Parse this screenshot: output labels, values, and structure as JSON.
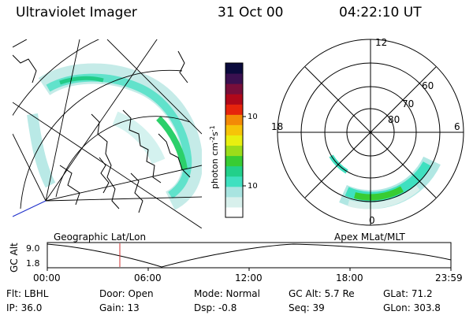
{
  "header": {
    "title": "Ultraviolet Imager",
    "date": "31 Oct 00",
    "time": "04:22:10 UT"
  },
  "colorbar": {
    "label": "photon cm",
    "label_sup1": "-2",
    "label_mid": "s",
    "label_sup2": "-1",
    "ticks": [
      "100",
      "10"
    ],
    "tick_values": [
      100,
      10
    ],
    "colors": [
      "#ffffff",
      "#d8f0ec",
      "#a8e4e0",
      "#3fe0c0",
      "#22d08a",
      "#38cc33",
      "#9bdc1a",
      "#e8ef10",
      "#f6c408",
      "#f38a06",
      "#e6240c",
      "#b0081a",
      "#780e3a",
      "#3a1050",
      "#0a0a3c"
    ]
  },
  "polar_plot": {
    "labels": {
      "top": "12",
      "bottom": "0",
      "left": "18",
      "right": "6",
      "lat60": "60",
      "lat70": "70",
      "lat80": "80"
    }
  },
  "timeline": {
    "ylabel": "GC Alt",
    "yticks": [
      "9.0",
      "1.8"
    ],
    "left_caption": "Geographic Lat/Lon",
    "right_caption": "Apex MLat/MLT",
    "xticks": [
      "00:00",
      "06:00",
      "12:00",
      "18:00",
      "23:59"
    ],
    "current_marker_color": "#d23030"
  },
  "footer": {
    "row1": {
      "flt": "Flt: LBHL",
      "door": "Door: Open",
      "mode": "Mode: Normal",
      "gcalt": "GC Alt: 5.7 Re",
      "glat": "GLat:  71.2"
    },
    "row2": {
      "ip": "IP: 36.0",
      "gain": "Gain: 13",
      "dsp": "Dsp:    -0.8",
      "seq": "Seq: 39",
      "glon": "GLon: 303.8"
    }
  }
}
